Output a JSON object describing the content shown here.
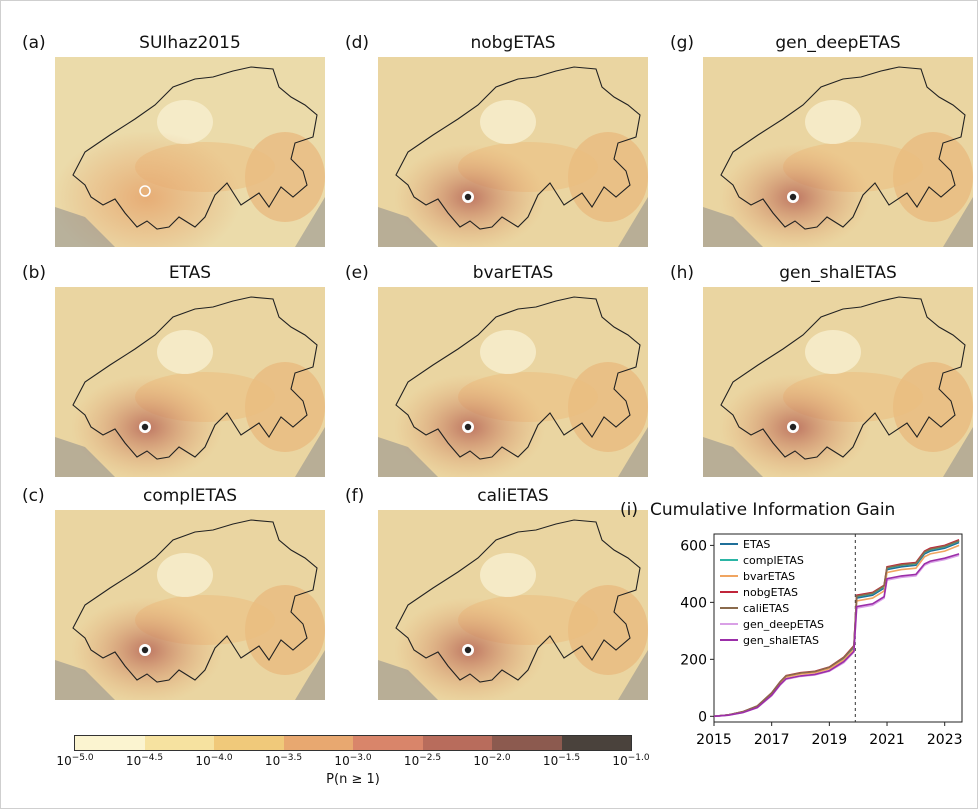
{
  "panels": [
    {
      "letter": "(a)",
      "title": "SUIhaz2015",
      "variant": "smooth",
      "epicenter": "ring"
    },
    {
      "letter": "(b)",
      "title": "ETAS",
      "variant": "full",
      "epicenter": "dot"
    },
    {
      "letter": "(c)",
      "title": "complETAS",
      "variant": "full",
      "epicenter": "dot"
    },
    {
      "letter": "(d)",
      "title": "nobgETAS",
      "variant": "full",
      "epicenter": "dot"
    },
    {
      "letter": "(e)",
      "title": "bvarETAS",
      "variant": "full",
      "epicenter": "dot"
    },
    {
      "letter": "(f)",
      "title": "caliETAS",
      "variant": "full",
      "epicenter": "dot"
    },
    {
      "letter": "(g)",
      "title": "gen_deepETAS",
      "variant": "full",
      "epicenter": "dot"
    },
    {
      "letter": "(h)",
      "title": "gen_shalETAS",
      "variant": "full",
      "epicenter": "dot"
    }
  ],
  "colorbar": {
    "label": "P(n ≥ 1)",
    "tick_base": "10",
    "ticks": [
      "−5.0",
      "−4.5",
      "−4.0",
      "−3.5",
      "−3.0",
      "−2.5",
      "−2.0",
      "−1.5",
      "−1.0"
    ],
    "colors": [
      "#fbf4d0",
      "#f6e2a0",
      "#f0c97a",
      "#e8a870",
      "#d9856a",
      "#b86c5c",
      "#8c5a4f",
      "#4a423c"
    ]
  },
  "chart_data": {
    "type": "line",
    "title": "Cumulative Information Gain",
    "panel_letter": "(i)",
    "xlabel": "",
    "ylabel": "",
    "xlim": [
      2015,
      2023.6
    ],
    "ylim": [
      -20,
      640
    ],
    "xticks": [
      2015,
      2017,
      2019,
      2021,
      2023
    ],
    "yticks": [
      0,
      200,
      400,
      600
    ],
    "vline_x": 2019.9,
    "legend_position": "upper-left",
    "x": [
      2015.0,
      2015.5,
      2016.0,
      2016.5,
      2017.0,
      2017.3,
      2017.5,
      2018.0,
      2018.5,
      2019.0,
      2019.5,
      2019.85,
      2019.95,
      2020.5,
      2020.9,
      2021.0,
      2021.5,
      2022.0,
      2022.3,
      2022.5,
      2023.0,
      2023.5
    ],
    "series": [
      {
        "name": "ETAS",
        "color": "#1f6f99",
        "values": [
          0,
          5,
          15,
          35,
          80,
          120,
          140,
          150,
          155,
          170,
          200,
          240,
          415,
          425,
          450,
          515,
          525,
          530,
          570,
          580,
          590,
          610
        ]
      },
      {
        "name": "complETAS",
        "color": "#2bb5a5",
        "values": [
          0,
          5,
          15,
          35,
          80,
          120,
          140,
          150,
          155,
          170,
          205,
          245,
          420,
          430,
          455,
          520,
          530,
          535,
          575,
          585,
          595,
          615
        ]
      },
      {
        "name": "bvarETAS",
        "color": "#f0a561",
        "values": [
          0,
          5,
          15,
          33,
          78,
          118,
          138,
          148,
          153,
          167,
          198,
          235,
          405,
          415,
          440,
          505,
          515,
          520,
          560,
          570,
          580,
          600
        ]
      },
      {
        "name": "nobgETAS",
        "color": "#c0253a",
        "values": [
          0,
          5,
          16,
          36,
          82,
          122,
          143,
          153,
          158,
          173,
          208,
          248,
          425,
          435,
          460,
          525,
          535,
          540,
          580,
          590,
          600,
          620
        ]
      },
      {
        "name": "caliETAS",
        "color": "#8a6a4c",
        "values": [
          0,
          5,
          16,
          36,
          82,
          122,
          142,
          152,
          157,
          172,
          206,
          246,
          422,
          432,
          458,
          522,
          532,
          537,
          577,
          587,
          597,
          617
        ]
      },
      {
        "name": "gen_deepETAS",
        "color": "#d9a0e6",
        "values": [
          0,
          4,
          13,
          30,
          72,
          110,
          130,
          140,
          145,
          158,
          188,
          225,
          380,
          390,
          415,
          478,
          488,
          493,
          530,
          540,
          550,
          565
        ]
      },
      {
        "name": "gen_shalETAS",
        "color": "#9b2ea8",
        "values": [
          0,
          4,
          13,
          31,
          74,
          112,
          132,
          142,
          147,
          160,
          192,
          228,
          385,
          395,
          420,
          483,
          493,
          498,
          535,
          545,
          555,
          570
        ]
      }
    ]
  }
}
